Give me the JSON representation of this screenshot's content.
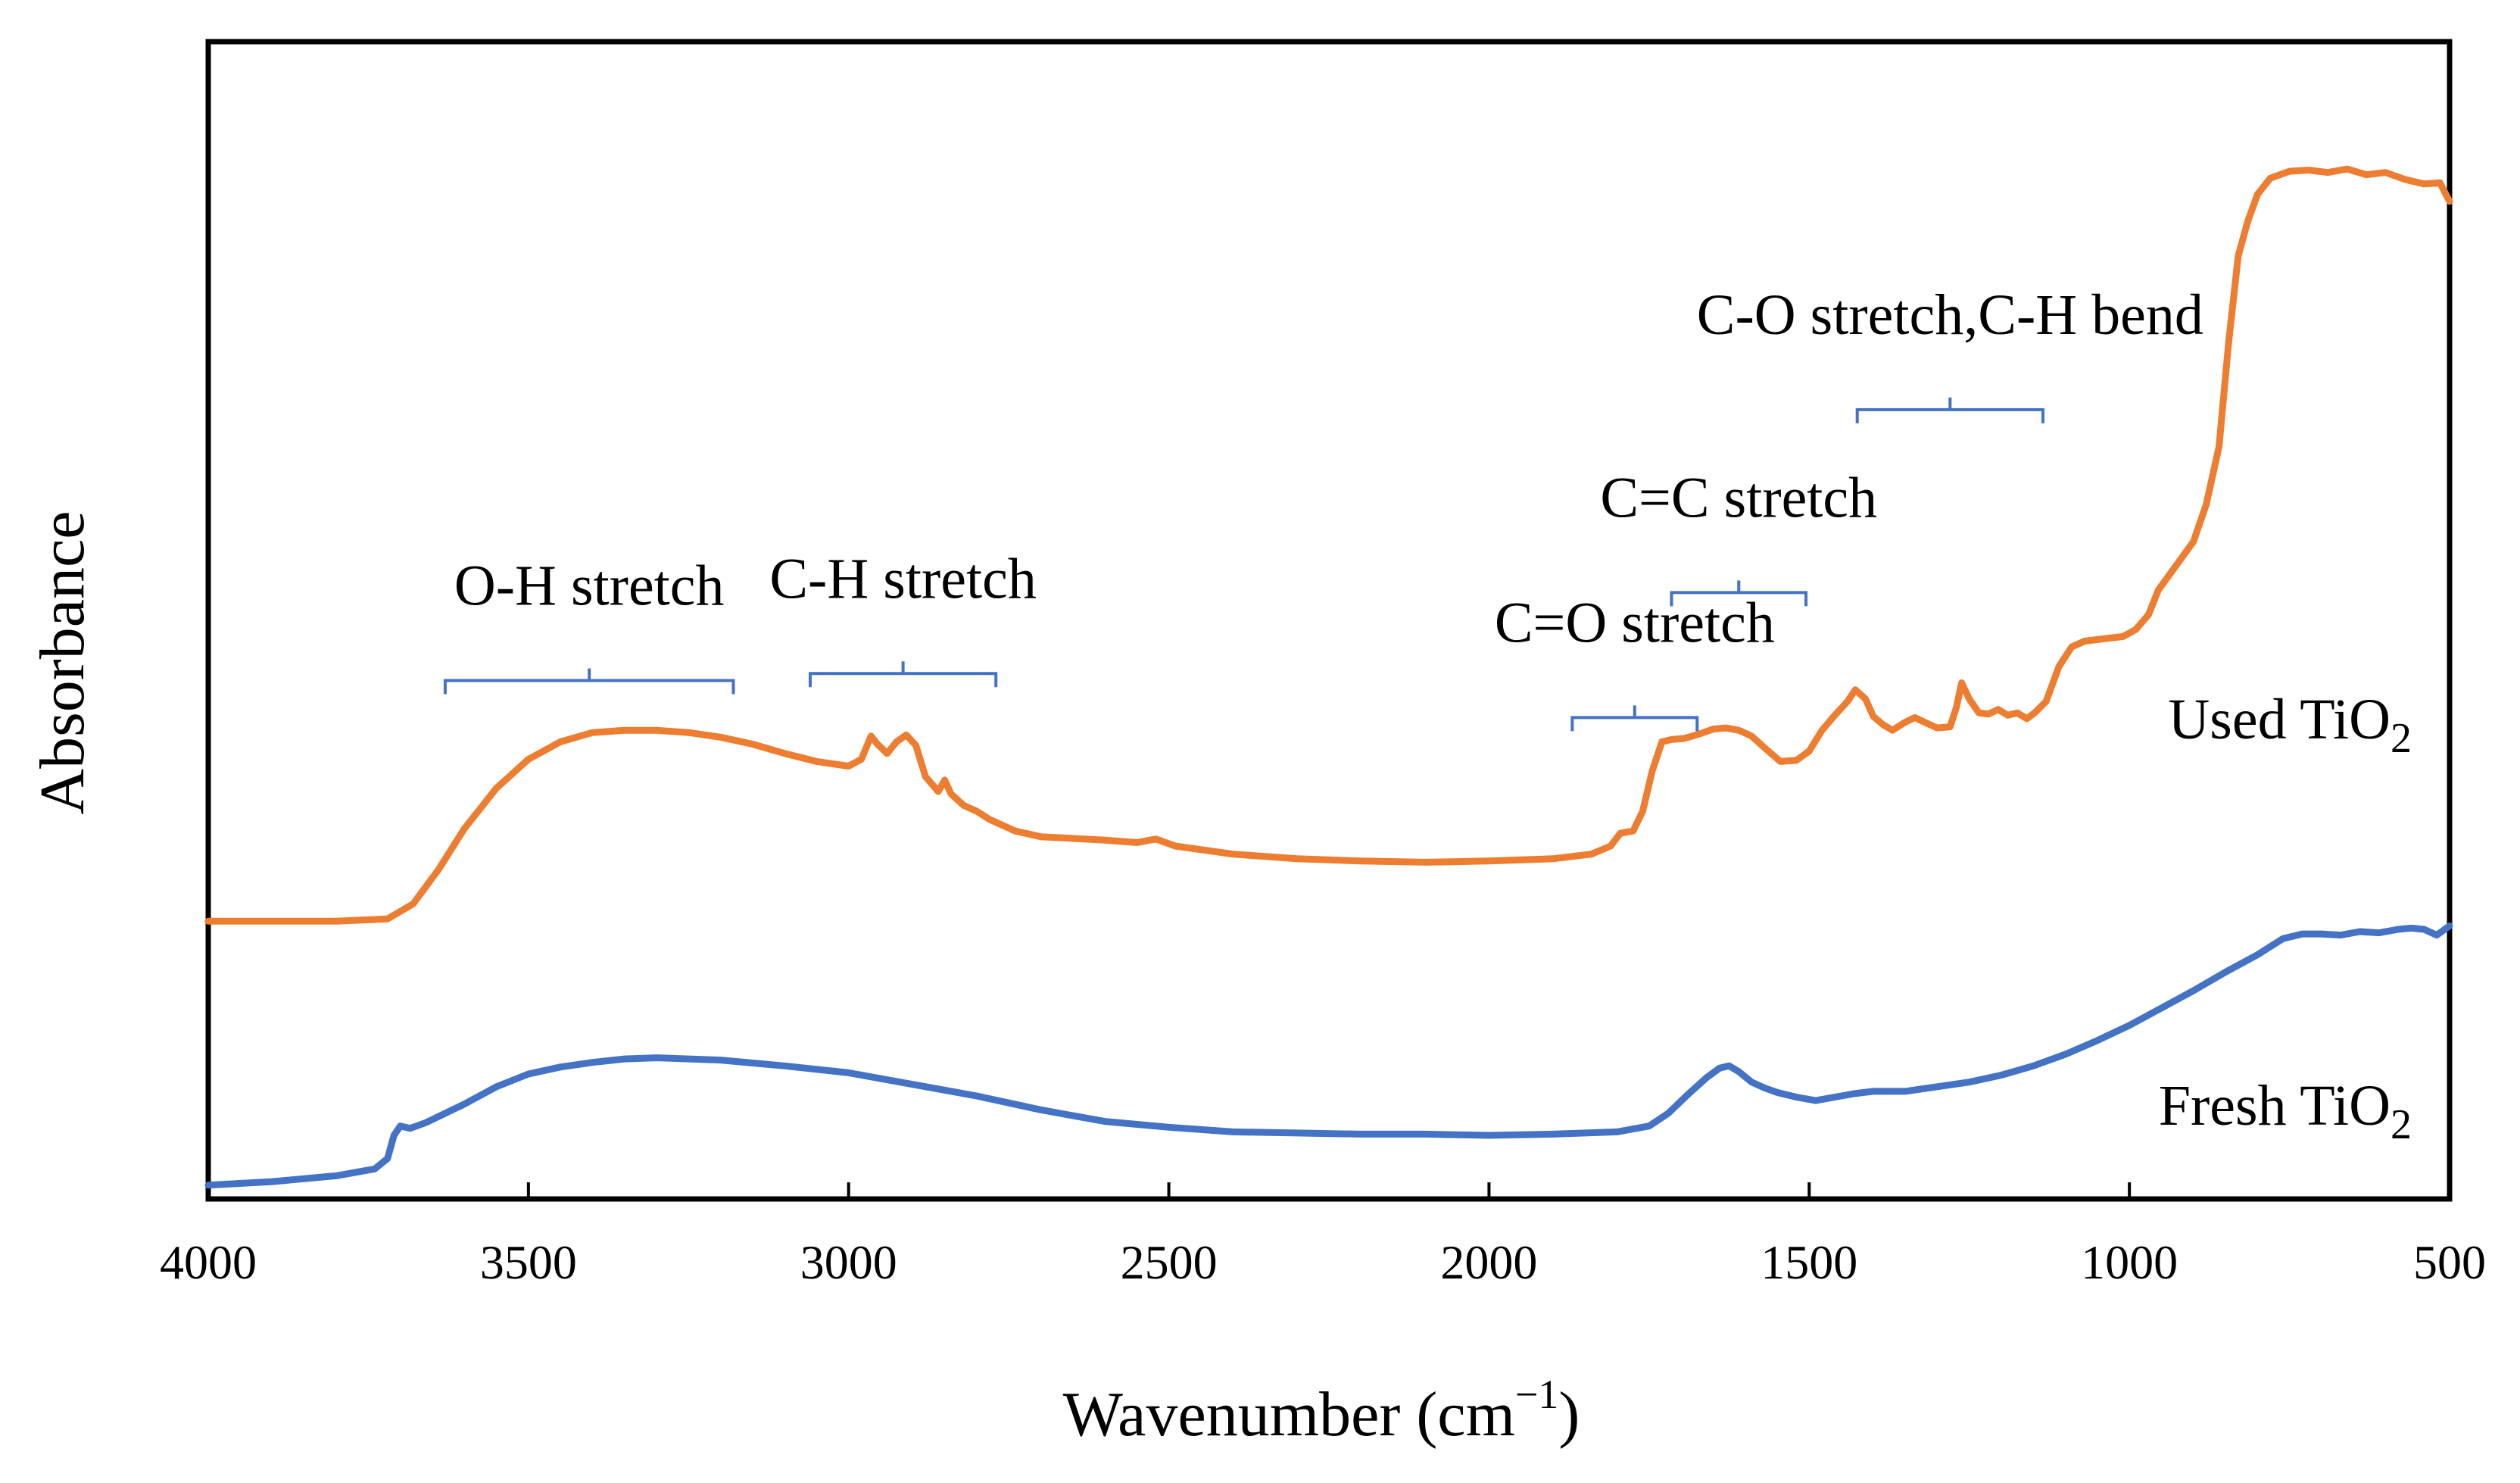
{
  "chart_data": {
    "type": "line",
    "title": "",
    "xlabel": "Wavenumber (cm",
    "xlabel_sup": "−1",
    "xlabel_close": ")",
    "ylabel": "Absorbance",
    "xlim": [
      4000,
      500
    ],
    "x_reversed": true,
    "ylim": [
      0,
      1
    ],
    "y_ticks_shown": false,
    "x_ticks": [
      4000,
      3500,
      3000,
      2500,
      2000,
      1500,
      1000,
      500
    ],
    "x_tick_labels": [
      "4000",
      "3500",
      "3000",
      "2500",
      "2000",
      "1500",
      "1000",
      "500"
    ],
    "grid": false,
    "series": [
      {
        "name": "Used TiO",
        "name_sub": "2",
        "color": "#ED7D31",
        "points": [
          [
            4000,
            0.24
          ],
          [
            3900,
            0.24
          ],
          [
            3800,
            0.24
          ],
          [
            3720,
            0.242
          ],
          [
            3680,
            0.255
          ],
          [
            3640,
            0.285
          ],
          [
            3600,
            0.32
          ],
          [
            3550,
            0.355
          ],
          [
            3500,
            0.38
          ],
          [
            3450,
            0.395
          ],
          [
            3400,
            0.403
          ],
          [
            3350,
            0.405
          ],
          [
            3300,
            0.405
          ],
          [
            3250,
            0.403
          ],
          [
            3200,
            0.399
          ],
          [
            3150,
            0.393
          ],
          [
            3100,
            0.385
          ],
          [
            3050,
            0.378
          ],
          [
            3000,
            0.374
          ],
          [
            2980,
            0.38
          ],
          [
            2965,
            0.4
          ],
          [
            2955,
            0.393
          ],
          [
            2940,
            0.385
          ],
          [
            2925,
            0.395
          ],
          [
            2910,
            0.401
          ],
          [
            2895,
            0.392
          ],
          [
            2880,
            0.365
          ],
          [
            2860,
            0.352
          ],
          [
            2850,
            0.362
          ],
          [
            2840,
            0.35
          ],
          [
            2820,
            0.34
          ],
          [
            2800,
            0.335
          ],
          [
            2780,
            0.328
          ],
          [
            2740,
            0.318
          ],
          [
            2700,
            0.313
          ],
          [
            2600,
            0.31
          ],
          [
            2550,
            0.308
          ],
          [
            2520,
            0.311
          ],
          [
            2490,
            0.305
          ],
          [
            2400,
            0.298
          ],
          [
            2300,
            0.294
          ],
          [
            2200,
            0.292
          ],
          [
            2100,
            0.291
          ],
          [
            2000,
            0.292
          ],
          [
            1900,
            0.294
          ],
          [
            1840,
            0.298
          ],
          [
            1810,
            0.305
          ],
          [
            1795,
            0.316
          ],
          [
            1775,
            0.318
          ],
          [
            1760,
            0.335
          ],
          [
            1745,
            0.37
          ],
          [
            1730,
            0.395
          ],
          [
            1715,
            0.397
          ],
          [
            1695,
            0.398
          ],
          [
            1670,
            0.402
          ],
          [
            1650,
            0.406
          ],
          [
            1630,
            0.407
          ],
          [
            1610,
            0.405
          ],
          [
            1590,
            0.4
          ],
          [
            1570,
            0.39
          ],
          [
            1545,
            0.378
          ],
          [
            1520,
            0.379
          ],
          [
            1500,
            0.387
          ],
          [
            1480,
            0.405
          ],
          [
            1460,
            0.418
          ],
          [
            1440,
            0.43
          ],
          [
            1428,
            0.44
          ],
          [
            1412,
            0.432
          ],
          [
            1400,
            0.417
          ],
          [
            1385,
            0.41
          ],
          [
            1370,
            0.405
          ],
          [
            1350,
            0.412
          ],
          [
            1335,
            0.416
          ],
          [
            1320,
            0.412
          ],
          [
            1300,
            0.407
          ],
          [
            1280,
            0.408
          ],
          [
            1270,
            0.425
          ],
          [
            1262,
            0.446
          ],
          [
            1250,
            0.432
          ],
          [
            1235,
            0.42
          ],
          [
            1220,
            0.419
          ],
          [
            1205,
            0.423
          ],
          [
            1190,
            0.418
          ],
          [
            1175,
            0.42
          ],
          [
            1160,
            0.415
          ],
          [
            1148,
            0.42
          ],
          [
            1130,
            0.43
          ],
          [
            1110,
            0.46
          ],
          [
            1090,
            0.477
          ],
          [
            1070,
            0.482
          ],
          [
            1040,
            0.484
          ],
          [
            1010,
            0.486
          ],
          [
            990,
            0.492
          ],
          [
            970,
            0.505
          ],
          [
            955,
            0.526
          ],
          [
            930,
            0.545
          ],
          [
            900,
            0.568
          ],
          [
            880,
            0.6
          ],
          [
            860,
            0.65
          ],
          [
            845,
            0.74
          ],
          [
            830,
            0.815
          ],
          [
            815,
            0.845
          ],
          [
            800,
            0.868
          ],
          [
            780,
            0.882
          ],
          [
            750,
            0.888
          ],
          [
            720,
            0.889
          ],
          [
            690,
            0.887
          ],
          [
            660,
            0.89
          ],
          [
            630,
            0.885
          ],
          [
            600,
            0.887
          ],
          [
            570,
            0.881
          ],
          [
            540,
            0.877
          ],
          [
            515,
            0.878
          ],
          [
            500,
            0.862
          ]
        ]
      },
      {
        "name": "Fresh TiO",
        "name_sub": "2",
        "color": "#4472C4",
        "points": [
          [
            4000,
            0.012
          ],
          [
            3900,
            0.015
          ],
          [
            3800,
            0.02
          ],
          [
            3740,
            0.026
          ],
          [
            3720,
            0.035
          ],
          [
            3710,
            0.055
          ],
          [
            3700,
            0.063
          ],
          [
            3685,
            0.061
          ],
          [
            3660,
            0.066
          ],
          [
            3600,
            0.082
          ],
          [
            3550,
            0.097
          ],
          [
            3500,
            0.108
          ],
          [
            3450,
            0.114
          ],
          [
            3400,
            0.118
          ],
          [
            3350,
            0.121
          ],
          [
            3300,
            0.122
          ],
          [
            3250,
            0.121
          ],
          [
            3200,
            0.12
          ],
          [
            3100,
            0.115
          ],
          [
            3000,
            0.109
          ],
          [
            2900,
            0.099
          ],
          [
            2800,
            0.089
          ],
          [
            2700,
            0.077
          ],
          [
            2600,
            0.067
          ],
          [
            2500,
            0.062
          ],
          [
            2400,
            0.058
          ],
          [
            2300,
            0.057
          ],
          [
            2200,
            0.056
          ],
          [
            2100,
            0.056
          ],
          [
            2000,
            0.055
          ],
          [
            1900,
            0.056
          ],
          [
            1800,
            0.058
          ],
          [
            1750,
            0.063
          ],
          [
            1720,
            0.074
          ],
          [
            1690,
            0.09
          ],
          [
            1660,
            0.105
          ],
          [
            1640,
            0.113
          ],
          [
            1625,
            0.115
          ],
          [
            1610,
            0.11
          ],
          [
            1590,
            0.101
          ],
          [
            1570,
            0.096
          ],
          [
            1550,
            0.092
          ],
          [
            1520,
            0.088
          ],
          [
            1490,
            0.085
          ],
          [
            1460,
            0.088
          ],
          [
            1430,
            0.091
          ],
          [
            1400,
            0.093
          ],
          [
            1350,
            0.093
          ],
          [
            1300,
            0.097
          ],
          [
            1250,
            0.101
          ],
          [
            1200,
            0.107
          ],
          [
            1150,
            0.115
          ],
          [
            1100,
            0.125
          ],
          [
            1050,
            0.137
          ],
          [
            1000,
            0.15
          ],
          [
            950,
            0.165
          ],
          [
            900,
            0.18
          ],
          [
            850,
            0.196
          ],
          [
            800,
            0.211
          ],
          [
            760,
            0.225
          ],
          [
            730,
            0.229
          ],
          [
            700,
            0.229
          ],
          [
            670,
            0.228
          ],
          [
            640,
            0.231
          ],
          [
            610,
            0.23
          ],
          [
            580,
            0.233
          ],
          [
            560,
            0.234
          ],
          [
            540,
            0.233
          ],
          [
            520,
            0.228
          ],
          [
            500,
            0.236
          ]
        ]
      }
    ],
    "annotations": [
      {
        "text": "O-H stretch",
        "x_from": 3630,
        "x_to": 3180,
        "bracket_y": 0.448
      },
      {
        "text": "C-H stretch",
        "x_from": 3060,
        "x_to": 2770,
        "bracket_y": 0.454
      },
      {
        "text": "C=O stretch",
        "x_from": 1870,
        "x_to": 1675,
        "bracket_y": 0.416
      },
      {
        "text": "C=C stretch",
        "x_from": 1715,
        "x_to": 1505,
        "bracket_y": 0.524
      },
      {
        "text": "C-O stretch,C-H bend",
        "x_from": 1425,
        "x_to": 1135,
        "bracket_y": 0.682
      }
    ]
  }
}
